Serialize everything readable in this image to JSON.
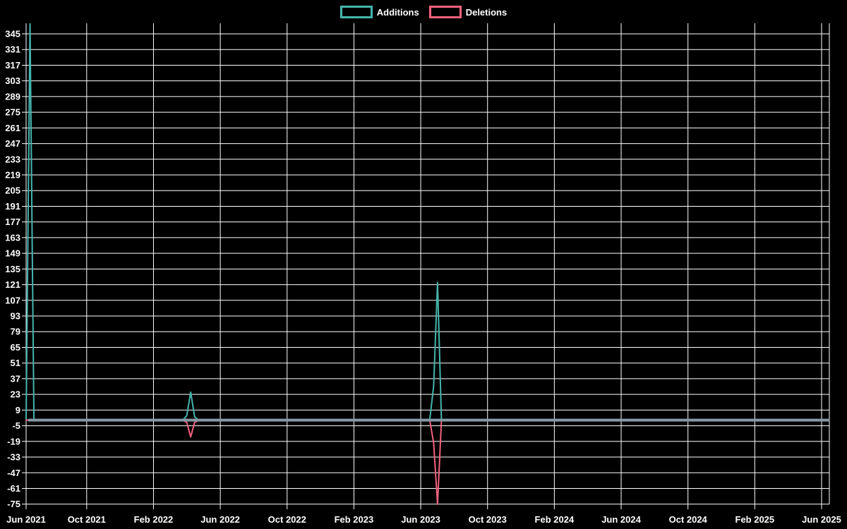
{
  "legend": {
    "items": [
      {
        "label": "Additions",
        "color": "#45b5ad"
      },
      {
        "label": "Deletions",
        "color": "#f4627d"
      }
    ]
  },
  "chart_data": {
    "type": "line",
    "title": "",
    "xlabel": "",
    "ylabel": "",
    "x_tick_labels": [
      "Jun 2021",
      "Oct 2021",
      "Feb 2022",
      "Jun 2022",
      "Oct 2022",
      "Feb 2023",
      "Jun 2023",
      "Oct 2023",
      "Feb 2024",
      "Jun 2024",
      "Oct 2024",
      "Feb 2025",
      "Jun 2025"
    ],
    "y_ticks": [
      345,
      331,
      317,
      303,
      289,
      275,
      261,
      247,
      233,
      219,
      205,
      191,
      177,
      163,
      149,
      135,
      121,
      107,
      93,
      79,
      65,
      51,
      37,
      23,
      9,
      -5,
      -19,
      -33,
      -47,
      -61,
      -75
    ],
    "y_step": 14,
    "ylim": [
      -75,
      354
    ],
    "grid": "on",
    "legend_position": "top-center",
    "background_color": "#000000",
    "grid_color": "#ffffff",
    "text_color": "#ffffff",
    "zero_line_color": "#8599a7",
    "weeks_total": 205,
    "weeks_note": "weekly points, Jun 2021 through Jun 2025; all weeks are 0 except the spike weeks listed per series",
    "series": [
      {
        "name": "Additions",
        "color": "#45b5ad",
        "baseline": 0,
        "spikes": {
          "1": 354,
          "41": 4,
          "42": 25,
          "43": 3,
          "104": 30,
          "105": 123
        }
      },
      {
        "name": "Deletions",
        "color": "#f4627d",
        "baseline": 0,
        "spikes": {
          "41": -2,
          "42": -15,
          "43": -2,
          "104": -20,
          "105": -75
        }
      }
    ]
  }
}
